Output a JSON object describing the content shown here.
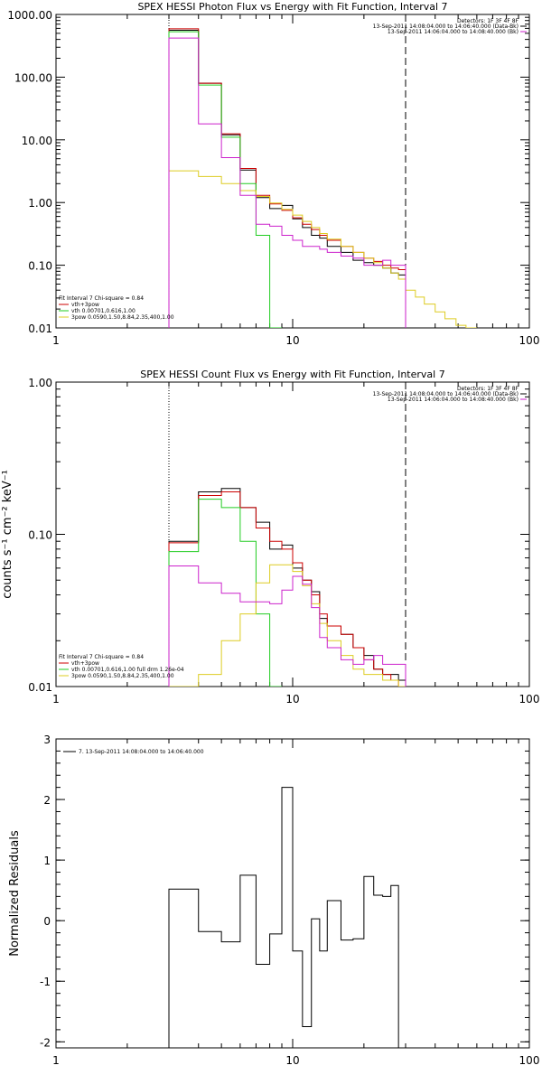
{
  "chart_data": [
    {
      "type": "line",
      "style": "histogram",
      "title": "SPEX HESSI Photon Flux vs Energy with Fit Function, Interval 7",
      "xlabel": "",
      "ylabel": "",
      "xscale": "log",
      "yscale": "log",
      "xlim": [
        1,
        100
      ],
      "ylim": [
        0.01,
        1000
      ],
      "xticks": [
        "1",
        "10",
        "100"
      ],
      "yticks": [
        "0.01",
        "0.10",
        "1.00",
        "10.00",
        "100.00",
        "1000.00"
      ],
      "vlines": [
        {
          "x": 3,
          "style": "dotted"
        },
        {
          "x": 30,
          "style": "dashed"
        }
      ],
      "info_lines": [
        "Detectors: 1F 3F 4F 8F",
        "13-Sep-2011 14:08:04.000 to 14:06:40.000 (Data-Bk)",
        "13-Sep-2011 14:06:04.000 to 14:08:40.000 (Bk)"
      ],
      "legend_position": "bottom-left",
      "legend_lines": [
        "Fit Interval 7   Chi-square = 0.84",
        "vth+3pow",
        "vth 0.00701,0.616,1.00",
        "3pow 0.0590,1.50,8.84,2.35,400,1.00"
      ],
      "bin_edges": [
        3,
        4,
        5,
        6,
        7,
        8,
        9,
        10,
        11,
        12,
        13,
        14,
        16,
        18,
        20,
        22,
        24,
        26,
        28,
        30,
        33,
        36,
        40,
        44,
        49,
        54,
        60
      ],
      "series": [
        {
          "name": "",
          "color": "#000000",
          "values": [
            560,
            80,
            12,
            3.3,
            1.2,
            0.8,
            0.9,
            0.55,
            0.4,
            0.3,
            0.27,
            0.2,
            0.16,
            0.12,
            0.11,
            0.1,
            0.09,
            0.075,
            0.07
          ]
        },
        {
          "name": "vth+3pow",
          "color": "#cc0000",
          "values": [
            590,
            80,
            12.5,
            3.5,
            1.3,
            0.95,
            0.75,
            0.57,
            0.45,
            0.37,
            0.3,
            0.25,
            0.2,
            0.16,
            0.13,
            0.115,
            0.1,
            0.09,
            0.085
          ]
        },
        {
          "name": "vth 0.00701,0.616,1.00",
          "color": "#22cc22",
          "values": [
            530,
            75,
            11,
            2,
            0.3,
            0.001
          ]
        },
        {
          "name": "3pow 0.0590,1.50,8.84,2.35,400,1.00",
          "color": "#ddcc22",
          "values": [
            3.2,
            2.6,
            2.0,
            1.55,
            1.25,
            0.98,
            0.78,
            0.63,
            0.5,
            0.4,
            0.32,
            0.26,
            0.2,
            0.16,
            0.13,
            0.11,
            0.09,
            0.075,
            0.06,
            0.04,
            0.031,
            0.024,
            0.018,
            0.014,
            0.011,
            0.009
          ]
        },
        {
          "name": "",
          "color": "#cc22cc",
          "values": [
            420,
            18,
            5.2,
            1.3,
            0.45,
            0.42,
            0.3,
            0.25,
            0.2,
            0.2,
            0.18,
            0.16,
            0.14,
            0.13,
            0.1,
            0.1,
            0.12,
            0.1,
            0.1
          ]
        }
      ]
    },
    {
      "type": "line",
      "style": "histogram",
      "title": "SPEX HESSI Count Flux vs Energy with Fit Function, Interval 7",
      "xlabel": "",
      "ylabel": "counts s⁻¹ cm⁻² keV⁻¹",
      "xscale": "log",
      "yscale": "log",
      "xlim": [
        1,
        100
      ],
      "ylim": [
        0.01,
        1
      ],
      "xticks": [
        "1",
        "10",
        "100"
      ],
      "yticks": [
        "0.01",
        "0.10",
        "1.00"
      ],
      "vlines": [
        {
          "x": 3,
          "style": "dotted"
        },
        {
          "x": 30,
          "style": "dashed"
        }
      ],
      "info_lines": [
        "Detectors: 1F 3F 4F 8F",
        "13-Sep-2011 14:08:04.000 to 14:06:40.000 (Data-Bk)",
        "13-Sep-2011 14:06:04.000 to 14:08:40.000 (Bk)"
      ],
      "legend_position": "bottom-left",
      "legend_lines": [
        "Fit Interval 7   Chi-square = 0.84",
        "vth+3pow",
        "vth 0.00701,0.616,1.00  full drm 1.26e-04",
        "3pow 0.0590,1.50,8.84,2.35,400,1.00"
      ],
      "bin_edges": [
        3,
        4,
        5,
        6,
        7,
        8,
        9,
        10,
        11,
        12,
        13,
        14,
        16,
        18,
        20,
        22,
        24,
        26,
        28,
        30
      ],
      "series": [
        {
          "name": "",
          "color": "#000000",
          "values": [
            0.09,
            0.19,
            0.2,
            0.15,
            0.12,
            0.08,
            0.085,
            0.06,
            0.05,
            0.042,
            0.028,
            0.025,
            0.022,
            0.018,
            0.016,
            0.013,
            0.012,
            0.012,
            0.011
          ]
        },
        {
          "name": "vth+3pow",
          "color": "#cc0000",
          "values": [
            0.088,
            0.18,
            0.19,
            0.15,
            0.11,
            0.09,
            0.08,
            0.065,
            0.05,
            0.04,
            0.03,
            0.025,
            0.022,
            0.018,
            0.015,
            0.013,
            0.012,
            0.011,
            0.01
          ]
        },
        {
          "name": "vth 0.00701,0.616,1.00  full drm 1.26e-04",
          "color": "#22cc22",
          "values": [
            0.077,
            0.17,
            0.15,
            0.09,
            0.03,
            0.001
          ]
        },
        {
          "name": "3pow 0.0590,1.50,8.84,2.35,400,1.00",
          "color": "#ddcc22",
          "values": [
            0.001,
            0.012,
            0.02,
            0.03,
            0.048,
            0.063,
            0.063,
            0.057,
            0.046,
            0.035,
            0.026,
            0.02,
            0.016,
            0.013,
            0.012,
            0.012,
            0.011,
            0.011,
            0.01
          ]
        },
        {
          "name": "",
          "color": "#cc22cc",
          "values": [
            0.062,
            0.048,
            0.041,
            0.036,
            0.036,
            0.035,
            0.043,
            0.053,
            0.047,
            0.033,
            0.021,
            0.018,
            0.015,
            0.014,
            0.015,
            0.016,
            0.014,
            0.014,
            0.014
          ]
        }
      ]
    },
    {
      "type": "line",
      "style": "histogram",
      "title": "",
      "xlabel": "",
      "ylabel": "Normalized Residuals",
      "xscale": "log",
      "yscale": "linear",
      "xlim": [
        1,
        100
      ],
      "ylim": [
        -2.1,
        3
      ],
      "xticks": [
        "1",
        "10",
        "100"
      ],
      "yticks": [
        "-2",
        "-1",
        "0",
        "1",
        "2",
        "3"
      ],
      "vlines": [],
      "info_lines": [],
      "legend_position": "top-left",
      "legend_lines": [
        "7. 13-Sep-2011 14:08:04.000 to 14:06:40.000"
      ],
      "bin_edges": [
        3,
        4,
        5,
        6,
        7,
        8,
        9,
        10,
        11,
        12,
        13,
        14,
        16,
        18,
        20,
        22,
        24,
        26,
        28,
        30
      ],
      "series": [
        {
          "name": "7. 13-Sep-2011 14:08:04.000 to 14:06:40.000",
          "color": "#000000",
          "values": [
            0.52,
            -0.18,
            -0.35,
            0.75,
            -0.72,
            -0.22,
            2.2,
            -0.5,
            -1.75,
            0.03,
            -0.5,
            0.33,
            -0.32,
            -0.3,
            0.73,
            0.42,
            0.4,
            0.58,
            -2.1
          ]
        }
      ]
    }
  ]
}
